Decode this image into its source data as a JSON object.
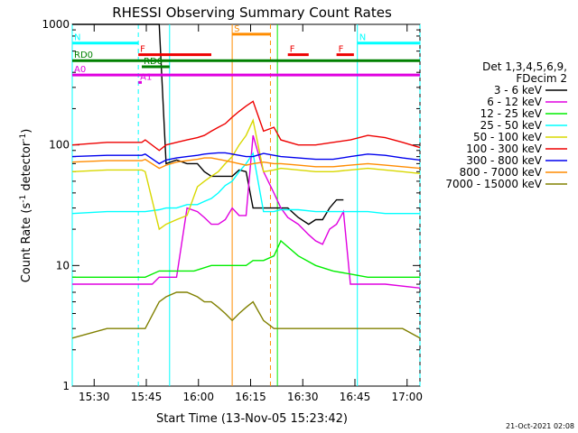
{
  "chart_data": {
    "type": "line",
    "title": "RHESSI Observing Summary Count Rates",
    "xlabel": "Start Time (13-Nov-05 15:23:42)",
    "ylabel_main": "Count Rate (s",
    "ylabel_sup1": "-1",
    "ylabel_mid": " detector",
    "ylabel_sup2": "-1",
    "ylabel_end": ")",
    "xlim_min": [
      0,
      100
    ],
    "ylim": [
      1,
      1000
    ],
    "yscale": "log",
    "yticks": [
      {
        "value": 1,
        "label": "1"
      },
      {
        "value": 10,
        "label": "10"
      },
      {
        "value": 100,
        "label": "100"
      },
      {
        "value": 1000,
        "label": "1000"
      }
    ],
    "xticks": [
      {
        "value": 6.3,
        "label": "15:30"
      },
      {
        "value": 21.3,
        "label": "15:45"
      },
      {
        "value": 36.3,
        "label": "16:00"
      },
      {
        "value": 51.3,
        "label": "16:15"
      },
      {
        "value": 66.3,
        "label": "16:30"
      },
      {
        "value": 81.3,
        "label": "16:45"
      },
      {
        "value": 96.3,
        "label": "17:00"
      }
    ],
    "legend_header": [
      "Det 1,3,4,5,6,9,",
      "FDecim 2"
    ],
    "legend_placement": "right",
    "series": [
      {
        "name": "3 - 6 keV",
        "color": "#000000",
        "x": [
          0,
          10,
          20,
          21,
          23,
          25,
          27,
          30,
          33,
          36,
          38,
          40,
          42,
          44,
          46,
          48,
          50,
          52,
          55,
          58,
          60,
          62,
          65,
          68,
          70,
          72,
          74,
          76,
          78
        ],
        "y": [
          1000,
          1000,
          1000,
          1000,
          1000,
          1000,
          70,
          75,
          70,
          70,
          60,
          55,
          55,
          55,
          55,
          62,
          60,
          30,
          30,
          30,
          30,
          30,
          25,
          22,
          24,
          24,
          30,
          35,
          35
        ]
      },
      {
        "name": "6 - 12 keV",
        "color": "#e000e0",
        "x": [
          0,
          10,
          20,
          21,
          23,
          25,
          27,
          30,
          33,
          36,
          38,
          40,
          42,
          44,
          46,
          48,
          50,
          52,
          55,
          58,
          60,
          62,
          65,
          68,
          70,
          72,
          74,
          76,
          78,
          80,
          90,
          100
        ],
        "y": [
          7,
          7,
          7,
          7,
          7,
          8,
          8,
          8,
          30,
          28,
          25,
          22,
          22,
          24,
          30,
          26,
          26,
          120,
          60,
          40,
          30,
          25,
          22,
          18,
          16,
          15,
          20,
          22,
          28,
          7,
          7,
          6.5
        ]
      },
      {
        "name": "12 - 25 keV",
        "color": "#00ee00",
        "x": [
          0,
          10,
          20,
          21,
          25,
          30,
          35,
          40,
          45,
          50,
          52,
          55,
          58,
          60,
          65,
          70,
          75,
          80,
          85,
          90,
          95,
          100
        ],
        "y": [
          8,
          8,
          8,
          8,
          9,
          9,
          9,
          10,
          10,
          10,
          11,
          11,
          12,
          16,
          12,
          10,
          9,
          8.5,
          8,
          8,
          8,
          8
        ]
      },
      {
        "name": "25 - 50 keV",
        "color": "#00ffff",
        "x": [
          0,
          10,
          20,
          21,
          25,
          27,
          30,
          33,
          36,
          38,
          40,
          42,
          44,
          46,
          48,
          50,
          52,
          55,
          58,
          60,
          65,
          70,
          75,
          80,
          85,
          90,
          95,
          100
        ],
        "y": [
          27,
          28,
          28,
          28,
          29,
          30,
          30,
          32,
          32,
          34,
          36,
          40,
          46,
          50,
          60,
          70,
          85,
          28,
          28,
          29,
          29,
          28,
          28,
          28,
          28,
          27,
          27,
          27
        ]
      },
      {
        "name": "50 - 100 keV",
        "color": "#d8d800",
        "x": [
          0,
          10,
          20,
          21,
          25,
          27,
          30,
          33,
          36,
          38,
          40,
          42,
          44,
          46,
          48,
          50,
          52,
          55,
          58,
          60,
          65,
          70,
          75,
          80,
          85,
          90,
          95,
          100
        ],
        "y": [
          60,
          62,
          62,
          60,
          20,
          22,
          24,
          26,
          45,
          50,
          55,
          60,
          70,
          80,
          100,
          120,
          160,
          60,
          62,
          64,
          62,
          60,
          60,
          62,
          64,
          62,
          60,
          58
        ]
      },
      {
        "name": "100 - 300 keV",
        "color": "#ee0000",
        "x": [
          0,
          10,
          20,
          21,
          25,
          27,
          30,
          33,
          36,
          38,
          40,
          42,
          44,
          46,
          48,
          50,
          52,
          55,
          58,
          60,
          65,
          70,
          75,
          80,
          85,
          90,
          95,
          100
        ],
        "y": [
          100,
          105,
          105,
          110,
          90,
          100,
          105,
          110,
          115,
          120,
          130,
          140,
          150,
          170,
          190,
          210,
          230,
          130,
          140,
          110,
          100,
          100,
          105,
          110,
          120,
          115,
          105,
          95
        ]
      },
      {
        "name": "300 - 800 keV",
        "color": "#0000ee",
        "x": [
          0,
          10,
          20,
          21,
          25,
          27,
          30,
          33,
          36,
          38,
          40,
          42,
          44,
          46,
          48,
          50,
          52,
          55,
          58,
          60,
          65,
          70,
          75,
          80,
          85,
          90,
          95,
          100
        ],
        "y": [
          80,
          82,
          82,
          84,
          70,
          75,
          78,
          80,
          82,
          84,
          85,
          86,
          86,
          84,
          82,
          80,
          80,
          85,
          82,
          80,
          78,
          76,
          76,
          80,
          84,
          82,
          78,
          75
        ]
      },
      {
        "name": "800 - 7000 keV",
        "color": "#ff8c00",
        "x": [
          0,
          10,
          20,
          21,
          25,
          27,
          30,
          33,
          36,
          38,
          40,
          42,
          44,
          46,
          48,
          50,
          52,
          55,
          58,
          60,
          65,
          70,
          75,
          80,
          85,
          90,
          95,
          100
        ],
        "y": [
          72,
          74,
          74,
          76,
          64,
          68,
          72,
          74,
          76,
          78,
          78,
          76,
          74,
          72,
          70,
          68,
          70,
          72,
          70,
          70,
          68,
          66,
          66,
          68,
          70,
          68,
          66,
          64
        ]
      },
      {
        "name": "7000 - 15000 keV",
        "color": "#808000",
        "x": [
          0,
          10,
          20,
          21,
          25,
          27,
          30,
          33,
          36,
          38,
          40,
          42,
          44,
          46,
          48,
          50,
          52,
          55,
          58,
          60,
          65,
          70,
          75,
          80,
          85,
          90,
          95,
          100
        ],
        "y": [
          2.5,
          3,
          3,
          3,
          5,
          5.5,
          6,
          6,
          5.5,
          5,
          5,
          4.5,
          4,
          3.5,
          4,
          4.5,
          5,
          3.5,
          3,
          3,
          3,
          3,
          3,
          3,
          3,
          3,
          3,
          2.5
        ]
      }
    ],
    "flag_bars": [
      {
        "label": "N",
        "color": "#00ffff",
        "x_start": 0,
        "x_end": 19,
        "y": 700
      },
      {
        "label": "N",
        "color": "#00ffff",
        "x_start": 82,
        "x_end": 100,
        "y": 700
      },
      {
        "label": "S",
        "color": "#ff8c00",
        "x_start": 46,
        "x_end": 57,
        "y": 830
      },
      {
        "label": "F",
        "color": "#ee0000",
        "x_start": 19,
        "x_end": 40,
        "y": 560
      },
      {
        "label": "F",
        "color": "#ee0000",
        "x_start": 62,
        "x_end": 68,
        "y": 560
      },
      {
        "label": "F",
        "color": "#ee0000",
        "x_start": 76,
        "x_end": 81,
        "y": 560
      },
      {
        "label": "RD0",
        "color": "#008000",
        "x_start": 0,
        "x_end": 100,
        "y": 500
      },
      {
        "label": "RD6",
        "color": "#008000",
        "x_start": 20,
        "x_end": 28,
        "y": 445
      },
      {
        "label": "A0",
        "color": "#e000e0",
        "x_start": 0,
        "x_end": 100,
        "y": 380
      },
      {
        "label": "A1",
        "color": "#e000e0",
        "x_start": 19,
        "x_end": 20,
        "y": 330
      }
    ],
    "vertical_markers": [
      {
        "x": 0,
        "color": "#00ffff",
        "style": "solid"
      },
      {
        "x": 19,
        "color": "#00ffff",
        "style": "dashed"
      },
      {
        "x": 28,
        "color": "#00ffff",
        "style": "solid"
      },
      {
        "x": 46,
        "color": "#ff8c00",
        "style": "solid"
      },
      {
        "x": 57,
        "color": "#ff8c00",
        "style": "dashed"
      },
      {
        "x": 59,
        "color": "#00ee00",
        "style": "solid"
      },
      {
        "x": 82,
        "color": "#00ffff",
        "style": "solid"
      },
      {
        "x": 100,
        "color": "#00ffff",
        "style": "dashed"
      }
    ],
    "footer_date": "21-Oct-2021 02:08"
  }
}
